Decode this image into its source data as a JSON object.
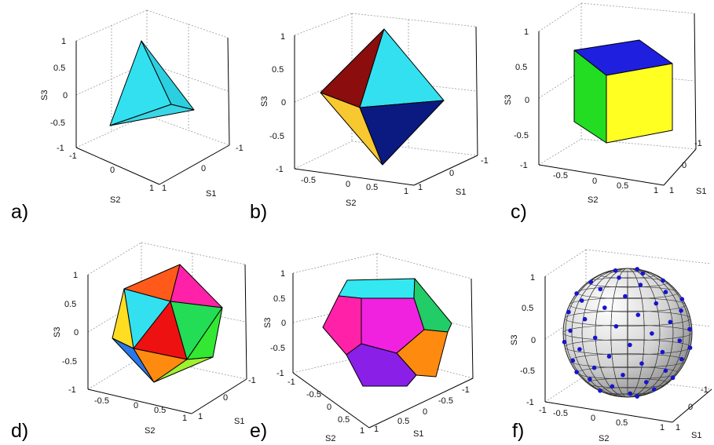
{
  "panels": [
    {
      "id": "a",
      "label": "a)",
      "shape": "tetrahedron",
      "xlabel": "S2",
      "ylabel": "S1",
      "zlabel": "S3",
      "zticks": [
        "1",
        "0.5",
        "0",
        "-0.5",
        "-1"
      ],
      "xticks": [
        "-1",
        "0",
        "1"
      ],
      "yticks": [
        "1",
        "0",
        "-1"
      ]
    },
    {
      "id": "b",
      "label": "b)",
      "shape": "octahedron",
      "xlabel": "S2",
      "ylabel": "S1",
      "zlabel": "S3",
      "zticks": [
        "1",
        "0.5",
        "0",
        "-0.5",
        "-1"
      ],
      "xticks": [
        "-0.5",
        "0",
        "0.5",
        "1"
      ],
      "yticks": [
        "1",
        "0",
        "-1"
      ]
    },
    {
      "id": "c",
      "label": "c)",
      "shape": "cube",
      "xlabel": "S2",
      "ylabel": "S1",
      "zlabel": "S3",
      "zticks": [
        "1",
        "0.5",
        "0",
        "-0.5",
        "-1"
      ],
      "xticks": [
        "-0.5",
        "0",
        "0.5",
        "1"
      ],
      "yticks": [
        "1",
        "0",
        "-1"
      ]
    },
    {
      "id": "d",
      "label": "d)",
      "shape": "icosahedron",
      "xlabel": "S2",
      "ylabel": "S1",
      "zlabel": "S3",
      "zticks": [
        "1",
        "0.5",
        "0",
        "-0.5",
        "-1"
      ],
      "xticks": [
        "-0.5",
        "0",
        "0.5",
        "1"
      ],
      "yticks": [
        "1",
        "0",
        "-1"
      ]
    },
    {
      "id": "e",
      "label": "e)",
      "shape": "dodecahedron",
      "xlabel": "S2",
      "ylabel": "S1",
      "zlabel": "S3",
      "zticks": [
        "1",
        "0.5",
        "0",
        "-0.5",
        "-1"
      ],
      "xticks": [
        "-1",
        "-0.5",
        "0",
        "0.5",
        "1"
      ],
      "yticks": [
        "1",
        "0.5",
        "0",
        "-0.5",
        "-1"
      ]
    },
    {
      "id": "f",
      "label": "f)",
      "shape": "sphere",
      "xlabel": "S2",
      "ylabel": "S1",
      "zlabel": "S3",
      "zticks": [
        "1",
        "0.5",
        "0",
        "-0.5",
        "-1"
      ],
      "xticks": [
        "-1",
        "-0.5",
        "0",
        "0.5",
        "1"
      ],
      "yticks": [
        "1",
        "0",
        "-1"
      ]
    }
  ],
  "colors": {
    "cyan": "#33e0f0",
    "darkred": "#8b0d0d",
    "gold": "#f7c830",
    "navy": "#0b1a80",
    "green": "#22dd22",
    "yellow": "#ffff22",
    "blue": "#1f1fe0",
    "red": "#ee1111",
    "orange": "#ff8a10",
    "magenta": "#ff22a8",
    "lime": "#9ef22e",
    "purple": "#8a20e8",
    "gray": "#d8d8d8",
    "point": "#1515d0"
  }
}
